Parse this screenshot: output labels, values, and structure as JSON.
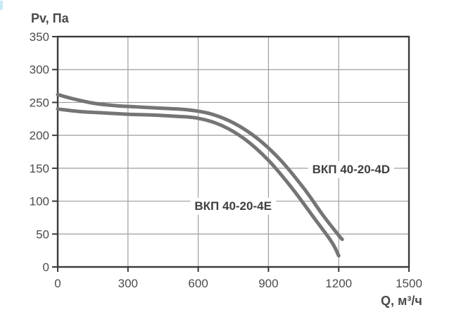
{
  "page": {
    "background": "#ffffff"
  },
  "colors": {
    "frame": "#3a3a3a",
    "grid": "#9e9e9e",
    "curve": "#757575",
    "tick_text": "#4c4c4c",
    "title_text": "#4a4a4a",
    "annotation_text": "#3f3f3f",
    "corner_accent": "#c7e9f6"
  },
  "chart_data": {
    "type": "line",
    "title": "",
    "xlabel": "Q, м³/ч",
    "ylabel": "Pv, Па",
    "xlim": [
      0,
      1500
    ],
    "ylim": [
      0,
      350
    ],
    "x_ticks": [
      0,
      300,
      600,
      900,
      1200,
      1500
    ],
    "y_ticks": [
      0,
      50,
      100,
      150,
      200,
      250,
      300,
      350
    ],
    "grid": true,
    "legend_position": "inline-annotations",
    "series": [
      {
        "name": "ВКП 40-20-4D",
        "slug": "vkp-40-20-4d",
        "label_pos": [
          1253,
          148
        ],
        "points": [
          [
            0,
            262
          ],
          [
            60,
            256
          ],
          [
            150,
            249
          ],
          [
            250,
            245
          ],
          [
            350,
            243
          ],
          [
            450,
            241
          ],
          [
            550,
            239
          ],
          [
            650,
            233
          ],
          [
            750,
            219
          ],
          [
            850,
            196
          ],
          [
            950,
            163
          ],
          [
            1050,
            120
          ],
          [
            1130,
            80
          ],
          [
            1200,
            48
          ],
          [
            1215,
            42
          ]
        ]
      },
      {
        "name": "ВКП 40-20-4E",
        "slug": "vkp-40-20-4e",
        "label_pos": [
          749,
          92
        ],
        "points": [
          [
            0,
            240
          ],
          [
            100,
            236
          ],
          [
            200,
            234
          ],
          [
            300,
            232
          ],
          [
            400,
            231
          ],
          [
            500,
            229
          ],
          [
            600,
            226
          ],
          [
            700,
            215
          ],
          [
            800,
            194
          ],
          [
            900,
            162
          ],
          [
            1000,
            120
          ],
          [
            1100,
            72
          ],
          [
            1170,
            38
          ],
          [
            1200,
            17
          ]
        ]
      }
    ]
  }
}
